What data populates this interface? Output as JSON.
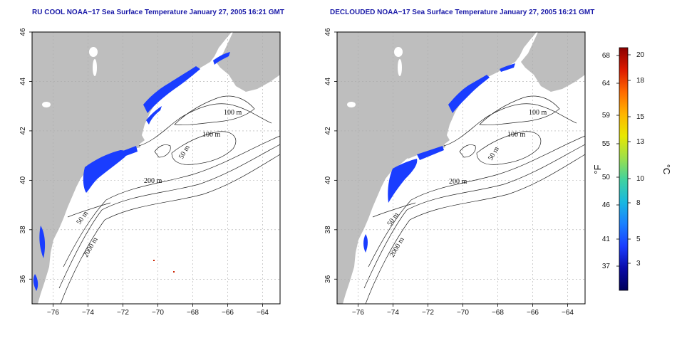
{
  "titles": {
    "left": "RU COOL NOAA−17 Sea Surface Temperature January 27, 2005 16:21 GMT",
    "right": "DECLOUDED NOAA−17 Sea Surface Temperature January 27, 2005 16:21 GMT"
  },
  "axes": {
    "lon_ticks": [
      -76,
      -74,
      -72,
      -70,
      -68,
      -66,
      -64
    ],
    "lat_ticks": [
      36,
      38,
      40,
      42,
      44,
      46
    ],
    "lon_range": [
      -77.2,
      -63
    ],
    "lat_range": [
      35,
      46
    ]
  },
  "contour_labels": [
    "100 m",
    "100 m",
    "50 m",
    "200 m",
    "50 m",
    "2000 m"
  ],
  "colorbar": {
    "fahrenheit_label": "°F",
    "celsius_label": "°C",
    "fahrenheit_ticks": [
      "68",
      "64",
      "59",
      "55",
      "50",
      "46",
      "41",
      "37"
    ],
    "celsius_ticks": [
      "20",
      "18",
      "15",
      "13",
      "10",
      "8",
      "5",
      "3"
    ],
    "gradient_colors": [
      "#8b0000",
      "#dd1a00",
      "#ff6a00",
      "#ffb400",
      "#e8e800",
      "#9de04a",
      "#3fd2a0",
      "#19b8e0",
      "#1a7fff",
      "#1a3dff",
      "#0a0aa8",
      "#00005a"
    ]
  },
  "colors": {
    "land": "#bebebe",
    "water": "#ffffff",
    "sst_cold": "#1a3dff",
    "title": "#1a1aa8"
  }
}
